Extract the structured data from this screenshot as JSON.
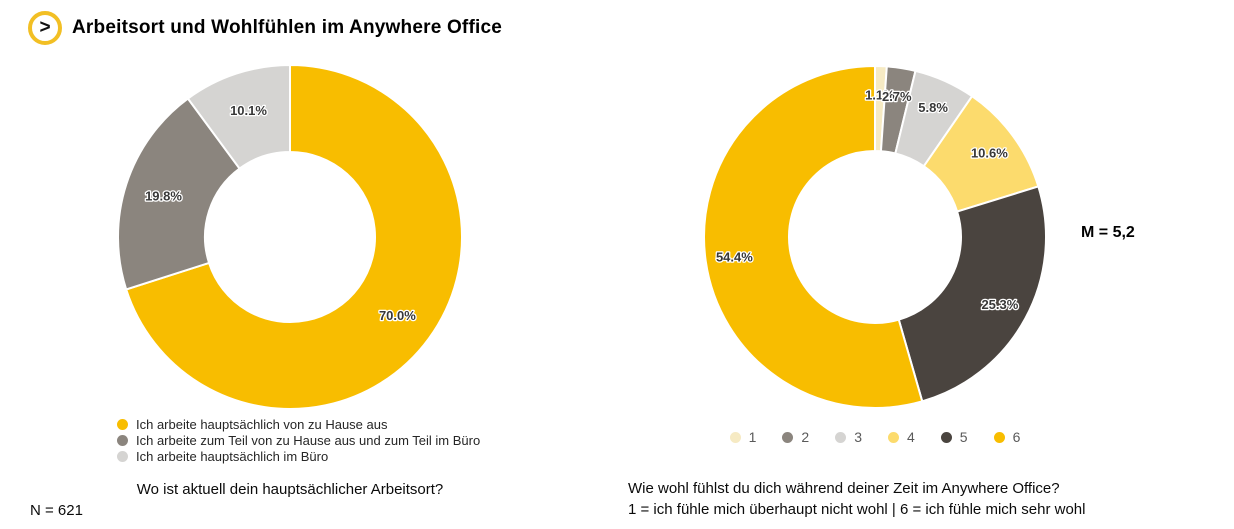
{
  "header": {
    "logo_glyph": ">",
    "title": "Arbeitsort und Wohlfühlen im Anywhere Office"
  },
  "sample_size": "N = 621",
  "colors": {
    "brand_yellow": "#F8BD00",
    "warm_gray": "#8B857E",
    "light_gray": "#D5D4D2",
    "cream": "#F6EAC3",
    "pale_yellow": "#FCDB6D",
    "dark_gray": "#4A443F"
  },
  "chart_data": [
    {
      "type": "donut",
      "title": "Wo ist aktuell dein hauptsächlicher Arbeitsort?",
      "unit": "%",
      "start_angle_deg": 0,
      "direction": "clockwise",
      "legend_position": "bottom-left",
      "segments": [
        {
          "label": "Ich arbeite hauptsächlich von zu Hause aus",
          "value": 70.0,
          "data_label": "70.0%",
          "color": "#F8BD00"
        },
        {
          "label": "Ich arbeite zum Teil von zu Hause aus und zum Teil im Büro",
          "value": 19.8,
          "data_label": "19.8%",
          "color": "#8B857E"
        },
        {
          "label": "Ich arbeite hauptsächlich im Büro",
          "value": 10.1,
          "data_label": "10.1%",
          "color": "#D5D4D2"
        }
      ]
    },
    {
      "type": "donut",
      "title": "Wie wohl fühlst du dich während deiner Zeit im Anywhere Office?",
      "scale_note": "1 = ich fühle mich überhaupt nicht wohl | 6 = ich fühle mich sehr wohl",
      "annotation": "M = 5,2",
      "unit": "%",
      "start_angle_deg": 0,
      "direction": "clockwise",
      "legend_position": "bottom-center",
      "segments": [
        {
          "label": "1",
          "value": 1.1,
          "data_label": "1.1%",
          "color": "#F6EAC3"
        },
        {
          "label": "2",
          "value": 2.7,
          "data_label": "2.7%",
          "color": "#8B857E"
        },
        {
          "label": "3",
          "value": 5.8,
          "data_label": "5.8%",
          "color": "#D5D4D2"
        },
        {
          "label": "4",
          "value": 10.6,
          "data_label": "10.6%",
          "color": "#FCDB6D"
        },
        {
          "label": "5",
          "value": 25.3,
          "data_label": "25.3%",
          "color": "#4A443F"
        },
        {
          "label": "6",
          "value": 54.4,
          "data_label": "54.4%",
          "color": "#F8BD00"
        }
      ]
    }
  ]
}
